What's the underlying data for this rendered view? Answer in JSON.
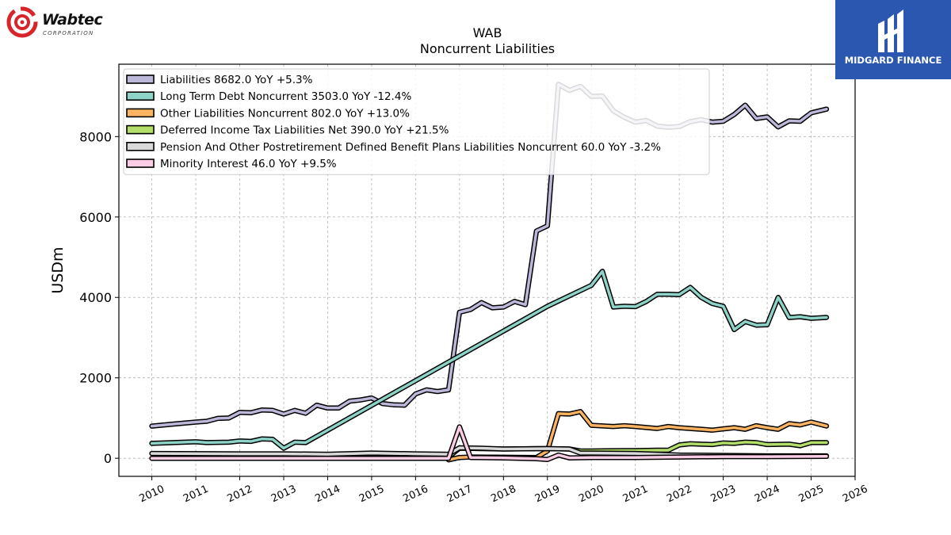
{
  "brand": {
    "name": "Wabtec",
    "subtitle": "CORPORATION"
  },
  "badge": {
    "name": "MIDGARD FINANCE",
    "color": "#2b57b0"
  },
  "chart_data": {
    "type": "line",
    "title": "WAB",
    "subtitle": "Noncurrent  Liabilities",
    "ylabel": "USDm",
    "xlabel": "",
    "xlim": [
      2009.25,
      2026
    ],
    "ylim": [
      -450,
      9800
    ],
    "xticks": [
      2010,
      2011,
      2012,
      2013,
      2014,
      2015,
      2016,
      2017,
      2018,
      2019,
      2020,
      2021,
      2022,
      2023,
      2024,
      2025,
      2026
    ],
    "yticks": [
      0,
      2000,
      4000,
      6000,
      8000
    ],
    "grid": true,
    "legend_position": "top-left",
    "series": [
      {
        "name": "Liabilities  8682.0 YoY +5.3%",
        "color": "#bcb8d9",
        "points": [
          [
            2010,
            800
          ],
          [
            2010.5,
            850
          ],
          [
            2011,
            900
          ],
          [
            2011.25,
            920
          ],
          [
            2011.5,
            990
          ],
          [
            2011.75,
            1000
          ],
          [
            2012,
            1140
          ],
          [
            2012.25,
            1130
          ],
          [
            2012.5,
            1200
          ],
          [
            2012.75,
            1190
          ],
          [
            2013,
            1100
          ],
          [
            2013.25,
            1190
          ],
          [
            2013.5,
            1120
          ],
          [
            2013.75,
            1320
          ],
          [
            2014,
            1250
          ],
          [
            2014.25,
            1250
          ],
          [
            2014.5,
            1420
          ],
          [
            2014.75,
            1450
          ],
          [
            2015,
            1500
          ],
          [
            2015.25,
            1360
          ],
          [
            2015.5,
            1330
          ],
          [
            2015.75,
            1320
          ],
          [
            2016,
            1600
          ],
          [
            2016.25,
            1700
          ],
          [
            2016.5,
            1660
          ],
          [
            2016.75,
            1700
          ],
          [
            2017,
            3630
          ],
          [
            2017.25,
            3700
          ],
          [
            2017.5,
            3870
          ],
          [
            2017.75,
            3740
          ],
          [
            2018,
            3760
          ],
          [
            2018.25,
            3900
          ],
          [
            2018.5,
            3820
          ],
          [
            2018.75,
            5650
          ],
          [
            2019,
            5780
          ],
          [
            2019.25,
            9300
          ],
          [
            2019.5,
            9150
          ],
          [
            2019.75,
            9250
          ],
          [
            2020,
            9000
          ],
          [
            2020.25,
            9010
          ],
          [
            2020.5,
            8640
          ],
          [
            2020.75,
            8480
          ],
          [
            2021,
            8360
          ],
          [
            2021.25,
            8400
          ],
          [
            2021.5,
            8260
          ],
          [
            2021.75,
            8230
          ],
          [
            2022,
            8250
          ],
          [
            2022.25,
            8370
          ],
          [
            2022.5,
            8420
          ],
          [
            2022.75,
            8360
          ],
          [
            2023,
            8380
          ],
          [
            2023.25,
            8550
          ],
          [
            2023.5,
            8780
          ],
          [
            2023.75,
            8450
          ],
          [
            2024,
            8490
          ],
          [
            2024.25,
            8240
          ],
          [
            2024.5,
            8390
          ],
          [
            2024.75,
            8380
          ],
          [
            2025,
            8590
          ],
          [
            2025.35,
            8682
          ]
        ]
      },
      {
        "name": "Long Term Debt Noncurrent  3503.0 YoY -12.4%",
        "color": "#8dd3c7",
        "points": [
          [
            2010,
            370
          ],
          [
            2010.5,
            390
          ],
          [
            2011,
            410
          ],
          [
            2011.25,
            390
          ],
          [
            2011.5,
            395
          ],
          [
            2011.75,
            400
          ],
          [
            2012,
            430
          ],
          [
            2012.25,
            420
          ],
          [
            2012.5,
            480
          ],
          [
            2012.75,
            470
          ],
          [
            2013,
            250
          ],
          [
            2013.25,
            400
          ],
          [
            2013.5,
            390
          ],
          [
            2019,
            3780
          ],
          [
            2020,
            4300
          ],
          [
            2020.25,
            4650
          ],
          [
            2020.5,
            3760
          ],
          [
            2020.75,
            3780
          ],
          [
            2021,
            3770
          ],
          [
            2021.25,
            3900
          ],
          [
            2021.5,
            4080
          ],
          [
            2021.75,
            4080
          ],
          [
            2022,
            4070
          ],
          [
            2022.25,
            4250
          ],
          [
            2022.5,
            4000
          ],
          [
            2022.75,
            3850
          ],
          [
            2023,
            3780
          ],
          [
            2023.25,
            3200
          ],
          [
            2023.5,
            3400
          ],
          [
            2023.75,
            3310
          ],
          [
            2024,
            3320
          ],
          [
            2024.25,
            4000
          ],
          [
            2024.5,
            3500
          ],
          [
            2024.75,
            3520
          ],
          [
            2025,
            3480
          ],
          [
            2025.35,
            3503
          ]
        ]
      },
      {
        "name": "Other Liabilities Noncurrent  802.0 YoY +13.0%",
        "color": "#fdb462",
        "points": [
          [
            2016.75,
            -40
          ],
          [
            2017,
            20
          ],
          [
            2017.25,
            30
          ],
          [
            2018.75,
            20
          ],
          [
            2019,
            180
          ],
          [
            2019.25,
            1110
          ],
          [
            2019.5,
            1100
          ],
          [
            2019.75,
            1160
          ],
          [
            2020,
            820
          ],
          [
            2020.5,
            790
          ],
          [
            2020.75,
            810
          ],
          [
            2021,
            790
          ],
          [
            2021.5,
            740
          ],
          [
            2021.75,
            790
          ],
          [
            2022,
            760
          ],
          [
            2022.5,
            720
          ],
          [
            2022.75,
            700
          ],
          [
            2023,
            730
          ],
          [
            2023.25,
            760
          ],
          [
            2023.5,
            720
          ],
          [
            2023.75,
            810
          ],
          [
            2024,
            760
          ],
          [
            2024.25,
            720
          ],
          [
            2024.5,
            860
          ],
          [
            2024.75,
            830
          ],
          [
            2025,
            900
          ],
          [
            2025.35,
            802
          ]
        ]
      },
      {
        "name": "Deferred Income Tax Liabilities Net  390.0 YoY +21.5%",
        "color": "#b3de69",
        "points": [
          [
            2016.75,
            30
          ],
          [
            2017,
            250
          ],
          [
            2017.5,
            240
          ],
          [
            2018,
            230
          ],
          [
            2018.75,
            240
          ],
          [
            2019,
            240
          ],
          [
            2019.5,
            230
          ],
          [
            2019.75,
            180
          ],
          [
            2020,
            180
          ],
          [
            2020.75,
            190
          ],
          [
            2021,
            190
          ],
          [
            2021.5,
            200
          ],
          [
            2021.75,
            200
          ],
          [
            2022,
            330
          ],
          [
            2022.25,
            360
          ],
          [
            2022.75,
            340
          ],
          [
            2023,
            380
          ],
          [
            2023.25,
            370
          ],
          [
            2023.5,
            400
          ],
          [
            2023.75,
            390
          ],
          [
            2024,
            340
          ],
          [
            2024.5,
            350
          ],
          [
            2024.75,
            310
          ],
          [
            2025,
            390
          ],
          [
            2025.35,
            390
          ]
        ]
      },
      {
        "name": "Pension And Other Postretirement Defined Benefit Plans Liabilities Noncurrent  60.0 YoY -3.2%",
        "color": "#d9d9d9",
        "points": [
          [
            2010,
            120
          ],
          [
            2012,
            110
          ],
          [
            2013,
            110
          ],
          [
            2014,
            100
          ],
          [
            2015,
            130
          ],
          [
            2016,
            110
          ],
          [
            2016.75,
            100
          ],
          [
            2017,
            260
          ],
          [
            2017.5,
            250
          ],
          [
            2018,
            230
          ],
          [
            2019,
            240
          ],
          [
            2019.5,
            230
          ],
          [
            2019.75,
            130
          ],
          [
            2020,
            130
          ],
          [
            2021,
            120
          ],
          [
            2022,
            80
          ],
          [
            2023,
            70
          ],
          [
            2024,
            60
          ],
          [
            2025,
            60
          ],
          [
            2025.35,
            60
          ]
        ]
      },
      {
        "name": "Minority Interest  46.0 YoY +9.5%",
        "color": "#fccde5",
        "points": [
          [
            2010,
            0
          ],
          [
            2012,
            0
          ],
          [
            2014,
            0
          ],
          [
            2016,
            0
          ],
          [
            2016.75,
            0
          ],
          [
            2017,
            780
          ],
          [
            2017.25,
            20
          ],
          [
            2017.5,
            15
          ],
          [
            2018,
            10
          ],
          [
            2018.75,
            -10
          ],
          [
            2019,
            -30
          ],
          [
            2019.25,
            80
          ],
          [
            2019.5,
            10
          ],
          [
            2020,
            20
          ],
          [
            2021,
            20
          ],
          [
            2022,
            30
          ],
          [
            2023,
            40
          ],
          [
            2024,
            40
          ],
          [
            2025,
            45
          ],
          [
            2025.35,
            46
          ]
        ]
      }
    ]
  }
}
